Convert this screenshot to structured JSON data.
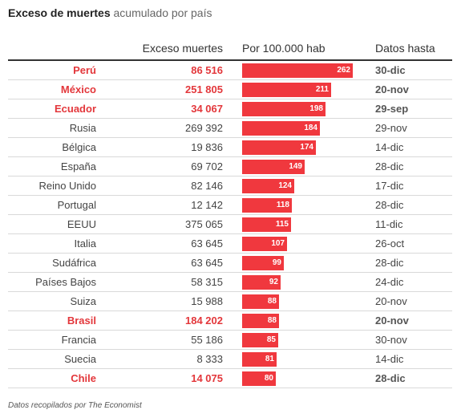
{
  "header": {
    "title_bold": "Exceso de muertes",
    "title_rest": "acumulado por país"
  },
  "columns": {
    "country": "",
    "excess": "Exceso muertes",
    "per100k": "Por 100.000 hab",
    "date": "Datos hasta"
  },
  "footer": {
    "source": "Datos recopilados por The Economist"
  },
  "colors": {
    "bar": "#f0383e",
    "highlight_text": "#e3373b"
  },
  "chart_data": {
    "type": "table",
    "bar_max": 262,
    "rows": [
      {
        "country": "Perú",
        "excess": "86 516",
        "per100k": 262,
        "date": "30-dic",
        "highlight": true
      },
      {
        "country": "México",
        "excess": "251 805",
        "per100k": 211,
        "date": "20-nov",
        "highlight": true
      },
      {
        "country": "Ecuador",
        "excess": "34 067",
        "per100k": 198,
        "date": "29-sep",
        "highlight": true
      },
      {
        "country": "Rusia",
        "excess": "269 392",
        "per100k": 184,
        "date": "29-nov",
        "highlight": false
      },
      {
        "country": "Bélgica",
        "excess": "19 836",
        "per100k": 174,
        "date": "14-dic",
        "highlight": false
      },
      {
        "country": "España",
        "excess": "69 702",
        "per100k": 149,
        "date": "28-dic",
        "highlight": false
      },
      {
        "country": "Reino Unido",
        "excess": "82 146",
        "per100k": 124,
        "date": "17-dic",
        "highlight": false
      },
      {
        "country": "Portugal",
        "excess": "12 142",
        "per100k": 118,
        "date": "28-dic",
        "highlight": false
      },
      {
        "country": "EEUU",
        "excess": "375 065",
        "per100k": 115,
        "date": "11-dic",
        "highlight": false
      },
      {
        "country": "Italia",
        "excess": "63 645",
        "per100k": 107,
        "date": "26-oct",
        "highlight": false
      },
      {
        "country": "Sudáfrica",
        "excess": "63 645",
        "per100k": 99,
        "date": "28-dic",
        "highlight": false
      },
      {
        "country": "Países Bajos",
        "excess": "58 315",
        "per100k": 92,
        "date": "24-dic",
        "highlight": false
      },
      {
        "country": "Suiza",
        "excess": "15 988",
        "per100k": 88,
        "date": "20-nov",
        "highlight": false
      },
      {
        "country": "Brasil",
        "excess": "184 202",
        "per100k": 88,
        "date": "20-nov",
        "highlight": true
      },
      {
        "country": "Francia",
        "excess": "55 186",
        "per100k": 85,
        "date": "30-nov",
        "highlight": false
      },
      {
        "country": "Suecia",
        "excess": "8 333",
        "per100k": 81,
        "date": "14-dic",
        "highlight": false
      },
      {
        "country": "Chile",
        "excess": "14 075",
        "per100k": 80,
        "date": "28-dic",
        "highlight": true
      }
    ]
  }
}
